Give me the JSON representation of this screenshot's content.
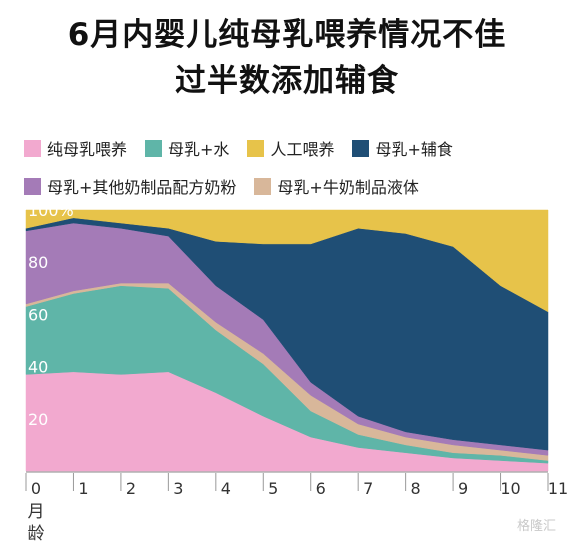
{
  "title": {
    "line1": "6月内婴儿纯母乳喂养情况不佳",
    "line2": "过半数添加辅食"
  },
  "colors": {
    "纯母乳喂养": "#f2a9cf",
    "母乳+水": "#5fb5a8",
    "人工喂养": "#e7c34a",
    "母乳+辅食": "#1f4e75",
    "母乳+其他奶制品配方奶粉": "#a47bb7",
    "母乳+牛奶制品液体": "#d8b79a"
  },
  "legend": {
    "row1": [
      "纯母乳喂养",
      "母乳+水",
      "人工喂养",
      "母乳+辅食"
    ],
    "row2": [
      "母乳+其他奶制品配方奶粉",
      "母乳+牛奶制品液体"
    ]
  },
  "watermark": "格隆汇",
  "chart_data": {
    "type": "area",
    "stacked": true,
    "x": [
      0,
      1,
      2,
      3,
      4,
      5,
      6,
      7,
      8,
      9,
      10,
      11
    ],
    "x_tick_labels": [
      "0",
      "1",
      "2",
      "3",
      "4",
      "5",
      "6",
      "7",
      "8",
      "9",
      "10",
      "11"
    ],
    "x_unit_label": [
      "月",
      "龄"
    ],
    "ylim": [
      0,
      100
    ],
    "y_ticks": [
      20,
      40,
      60,
      80,
      100
    ],
    "y_tick_labels": [
      "20",
      "40",
      "60",
      "80",
      "100%"
    ],
    "series": [
      {
        "name": "纯母乳喂养",
        "values": [
          37,
          38,
          37,
          38,
          30,
          21,
          13,
          9,
          7,
          5,
          4,
          3
        ]
      },
      {
        "name": "母乳+水",
        "values": [
          26,
          30,
          34,
          32,
          24,
          20,
          10,
          5,
          3,
          2,
          2,
          1
        ]
      },
      {
        "name": "母乳+牛奶制品液体",
        "values": [
          1,
          1,
          1,
          2,
          3,
          4,
          6,
          4,
          3,
          3,
          2,
          2
        ]
      },
      {
        "name": "母乳+其他奶制品配方奶粉",
        "values": [
          28,
          26,
          21,
          18,
          14,
          13,
          5,
          3,
          2,
          2,
          2,
          2
        ]
      },
      {
        "name": "母乳+辅食",
        "values": [
          1,
          2,
          2,
          3,
          17,
          29,
          53,
          72,
          76,
          74,
          61,
          53
        ]
      },
      {
        "name": "人工喂养",
        "values": [
          7,
          3,
          5,
          7,
          12,
          13,
          13,
          7,
          9,
          14,
          29,
          39
        ]
      }
    ]
  }
}
